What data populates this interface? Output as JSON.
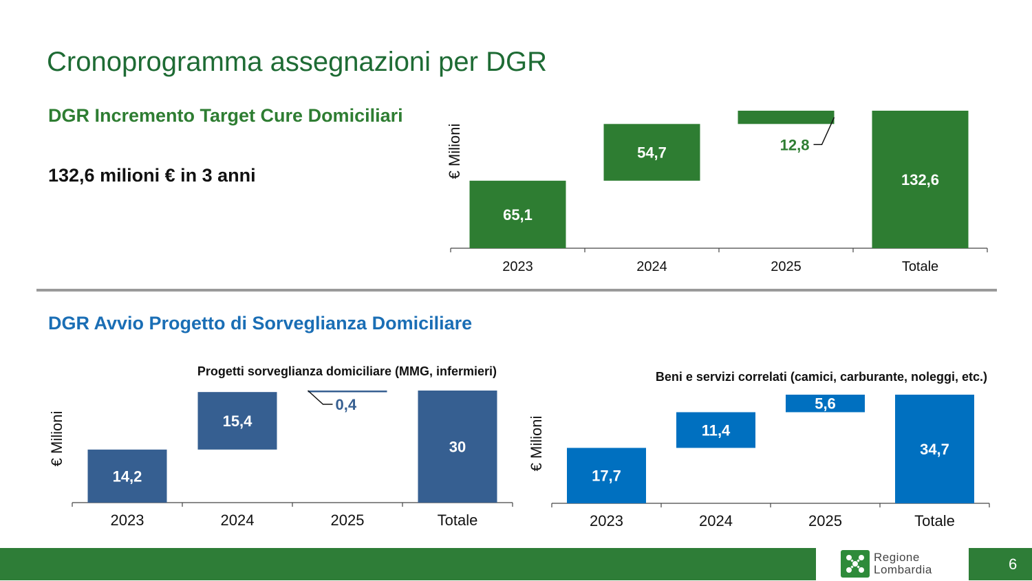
{
  "slide": {
    "title": "Cronoprogramma assegnazioni per DGR",
    "section1_title": "DGR Incremento Target Cure Domiciliari",
    "section1_note": "132,6 milioni € in 3 anni",
    "section2_title": "DGR Avvio Progetto di Sorveglianza Domiciliare",
    "page_number": "6"
  },
  "footer": {
    "logo_line1": "Regione",
    "logo_line2": "Lombardia"
  },
  "chart_data": [
    {
      "type": "bar",
      "subtype": "waterfall",
      "title": "",
      "ylabel": "€ Milioni",
      "categories": [
        "2023",
        "2024",
        "2025",
        "Totale"
      ],
      "values": [
        65.1,
        54.7,
        12.8,
        132.6
      ],
      "labels": [
        "65,1",
        "54,7",
        "12,8",
        "132,6"
      ],
      "color": "#2e7d32",
      "label_color": "#2e7d32"
    },
    {
      "type": "bar",
      "subtype": "waterfall",
      "title": "Progetti sorveglianza domiciliare (MMG, infermieri)",
      "ylabel": "€ Milioni",
      "categories": [
        "2023",
        "2024",
        "2025",
        "Totale"
      ],
      "values": [
        14.2,
        15.4,
        0.4,
        30
      ],
      "labels": [
        "14,2",
        "15,4",
        "0,4",
        "30"
      ],
      "color": "#365f91",
      "label_color": "#365f91"
    },
    {
      "type": "bar",
      "subtype": "waterfall",
      "title": "Beni e servizi correlati (camici, carburante, noleggi, etc.)",
      "ylabel": "€ Milioni",
      "categories": [
        "2023",
        "2024",
        "2025",
        "Totale"
      ],
      "values": [
        17.7,
        11.4,
        5.6,
        34.7
      ],
      "labels": [
        "17,7",
        "11,4",
        "5,6",
        "34,7"
      ],
      "color": "#0070c0",
      "label_color": "#0070c0"
    }
  ]
}
